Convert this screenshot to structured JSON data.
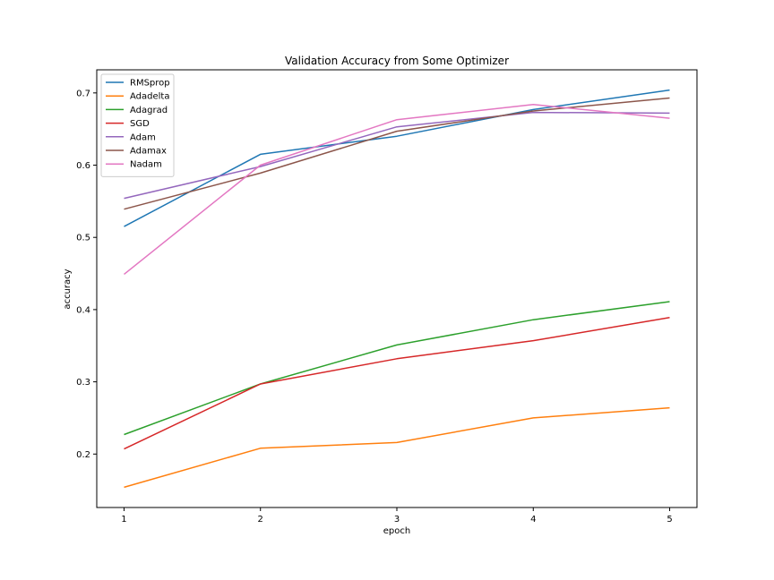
{
  "chart_data": {
    "type": "line",
    "title": "Validation Accuracy from Some Optimizer",
    "xlabel": "epoch",
    "ylabel": "accuracy",
    "x": [
      1,
      2,
      3,
      4,
      5
    ],
    "xticks": [
      "1",
      "2",
      "3",
      "4",
      "5"
    ],
    "yticks": [
      "0.2",
      "0.3",
      "0.4",
      "0.5",
      "0.6",
      "0.7"
    ],
    "xlim": [
      0.8,
      5.2
    ],
    "ylim": [
      0.126,
      0.732
    ],
    "grid": false,
    "legend_position": "upper-left",
    "series": [
      {
        "name": "RMSprop",
        "color": "#1f77b4",
        "values": [
          0.515,
          0.615,
          0.64,
          0.677,
          0.704
        ]
      },
      {
        "name": "Adadelta",
        "color": "#ff7f0e",
        "values": [
          0.154,
          0.208,
          0.216,
          0.25,
          0.264
        ]
      },
      {
        "name": "Adagrad",
        "color": "#2ca02c",
        "values": [
          0.227,
          0.297,
          0.351,
          0.386,
          0.411
        ]
      },
      {
        "name": "SGD",
        "color": "#d62728",
        "values": [
          0.207,
          0.297,
          0.332,
          0.357,
          0.389
        ]
      },
      {
        "name": "Adam",
        "color": "#9467bd",
        "values": [
          0.554,
          0.598,
          0.653,
          0.673,
          0.672
        ]
      },
      {
        "name": "Adamax",
        "color": "#8c564b",
        "values": [
          0.539,
          0.589,
          0.647,
          0.675,
          0.693
        ]
      },
      {
        "name": "Nadam",
        "color": "#e377c2",
        "values": [
          0.449,
          0.6,
          0.663,
          0.684,
          0.665
        ]
      }
    ]
  }
}
